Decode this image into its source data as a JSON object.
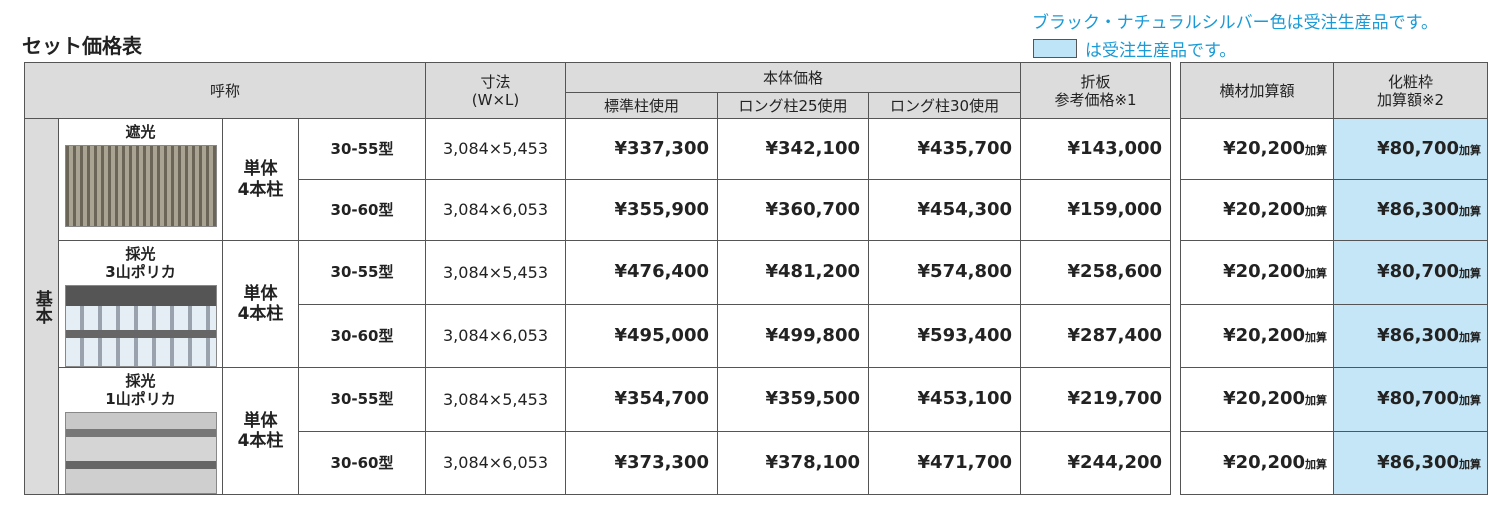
{
  "header": {
    "title": "セット価格表",
    "note": "ブラック・ナチュラルシルバー色は受注生産品です。",
    "legend_note": "は受注生産品です。"
  },
  "table": {
    "columns": {
      "name": "呼称",
      "size": "寸法\n(W×L)",
      "body_price": "本体価格",
      "standard": "標準柱使用",
      "long25": "ロング柱25使用",
      "long30": "ロング柱30使用",
      "folded": "折板\n参考価格※1",
      "crossbar": "横材加算額",
      "frame": "化粧枠\n加算額※2"
    },
    "section": "基本",
    "add_suffix": "加算",
    "groups": [
      {
        "label": "遮光",
        "config": "単体\n4本柱",
        "rows": [
          [
            "30-55型",
            "3,084×5,453",
            "¥337,300",
            "¥342,100",
            "¥435,700",
            "¥143,000",
            "¥20,200",
            "¥80,700"
          ],
          [
            "30-60型",
            "3,084×6,053",
            "¥355,900",
            "¥360,700",
            "¥454,300",
            "¥159,000",
            "¥20,200",
            "¥86,300"
          ]
        ]
      },
      {
        "label": "採光\n3山ポリカ",
        "config": "単体\n4本柱",
        "rows": [
          [
            "30-55型",
            "3,084×5,453",
            "¥476,400",
            "¥481,200",
            "¥574,800",
            "¥258,600",
            "¥20,200",
            "¥80,700"
          ],
          [
            "30-60型",
            "3,084×6,053",
            "¥495,000",
            "¥499,800",
            "¥593,400",
            "¥287,400",
            "¥20,200",
            "¥86,300"
          ]
        ]
      },
      {
        "label": "採光\n1山ポリカ",
        "config": "単体\n4本柱",
        "rows": [
          [
            "30-55型",
            "3,084×5,453",
            "¥354,700",
            "¥359,500",
            "¥453,100",
            "¥219,700",
            "¥20,200",
            "¥80,700"
          ],
          [
            "30-60型",
            "3,084×6,053",
            "¥373,300",
            "¥378,100",
            "¥471,700",
            "¥244,200",
            "¥20,200",
            "¥86,300"
          ]
        ]
      }
    ]
  }
}
